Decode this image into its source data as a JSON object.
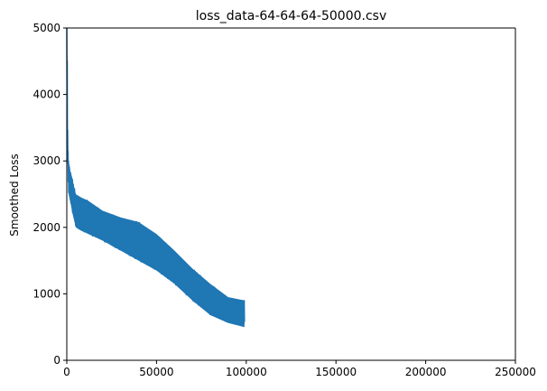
{
  "chart_data": {
    "type": "line",
    "title": "loss_data-64-64-64-50000.csv",
    "xlabel": "",
    "ylabel": "Smoothed Loss",
    "xlim": [
      0,
      250000
    ],
    "ylim": [
      0,
      5000
    ],
    "xticks": [
      0,
      50000,
      100000,
      150000,
      200000,
      250000
    ],
    "yticks": [
      0,
      1000,
      2000,
      3000,
      4000,
      5000
    ],
    "grid": false,
    "legend": "none",
    "series": [
      {
        "color": "#1f77b4",
        "trend": {
          "x": [
            0,
            200,
            500,
            1000,
            2000,
            3000,
            5000,
            8000,
            12000,
            20000,
            30000,
            40000,
            50000,
            60000,
            70000,
            80000,
            90000,
            99000
          ],
          "y": [
            5000,
            4300,
            3300,
            2800,
            2650,
            2500,
            2250,
            2130,
            2080,
            1950,
            1820,
            1700,
            1540,
            1330,
            1080,
            880,
            760,
            700
          ]
        },
        "band": {
          "x": [
            0,
            200,
            500,
            1000,
            2000,
            3000,
            5000,
            8000,
            12000,
            20000,
            30000,
            40000,
            50000,
            60000,
            70000,
            80000,
            90000,
            99000
          ],
          "upper": [
            5000,
            4800,
            3400,
            3000,
            2850,
            2750,
            2500,
            2450,
            2400,
            2250,
            2150,
            2080,
            1900,
            1650,
            1380,
            1150,
            950,
            900
          ],
          "lower": [
            4700,
            3200,
            3000,
            2500,
            2380,
            2230,
            2000,
            1950,
            1900,
            1800,
            1650,
            1500,
            1350,
            1150,
            900,
            680,
            560,
            500
          ]
        }
      }
    ]
  }
}
